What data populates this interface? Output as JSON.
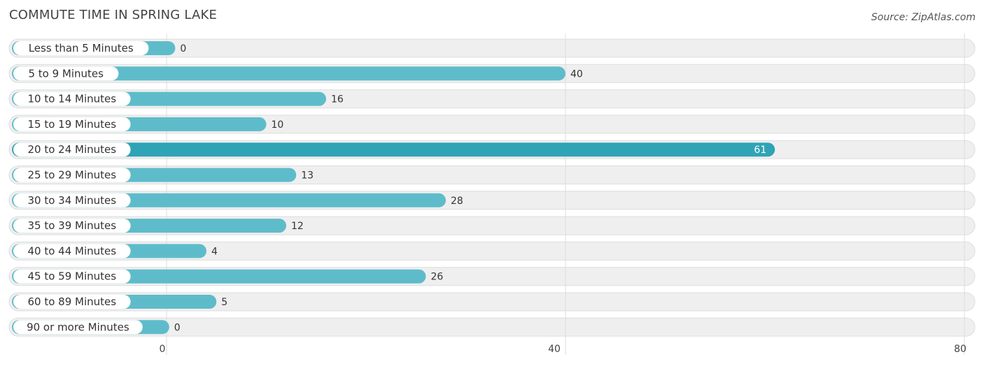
{
  "header": {
    "title": "COMMUTE TIME IN SPRING LAKE",
    "source": "Source: ZipAtlas.com"
  },
  "colors": {
    "bar": "#5ebcca",
    "bar_highlight": "#2fa4b6",
    "track": "#efefef",
    "track_border": "#dddddd",
    "grid": "#dddddd"
  },
  "chart_data": {
    "type": "bar",
    "orientation": "horizontal",
    "title": "COMMUTE TIME IN SPRING LAKE",
    "categories": [
      "Less than 5 Minutes",
      "5 to 9 Minutes",
      "10 to 14 Minutes",
      "15 to 19 Minutes",
      "20 to 24 Minutes",
      "25 to 29 Minutes",
      "30 to 34 Minutes",
      "35 to 39 Minutes",
      "40 to 44 Minutes",
      "45 to 59 Minutes",
      "60 to 89 Minutes",
      "90 or more Minutes"
    ],
    "values": [
      0,
      40,
      16,
      10,
      61,
      13,
      28,
      12,
      4,
      26,
      5,
      0
    ],
    "xlim": [
      0,
      80
    ],
    "xticks": [
      0,
      40,
      80
    ],
    "grid": true,
    "highlight_max": true
  }
}
